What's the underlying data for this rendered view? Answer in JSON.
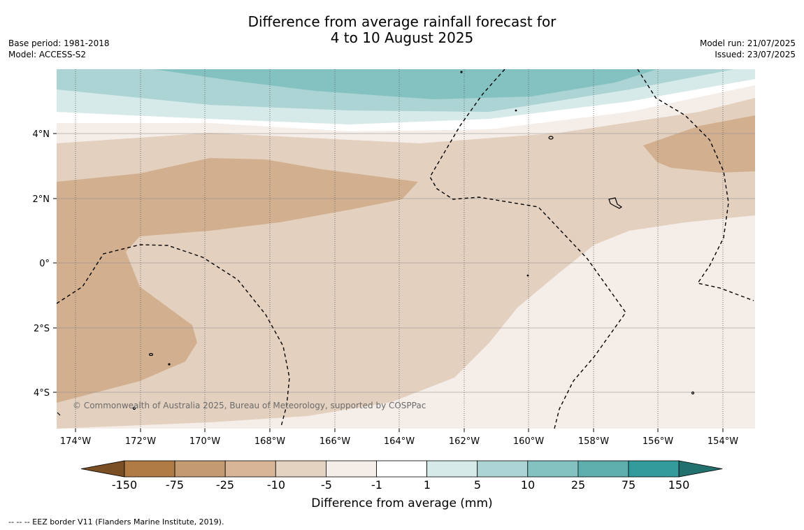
{
  "title_line1": "Difference from average rainfall forecast for",
  "title_line2": "4 to 10 August 2025",
  "meta_left": {
    "base_period": "Base period: 1981-2018",
    "model": "Model: ACCESS-S2"
  },
  "meta_right": {
    "model_run": "Model run: 21/07/2025",
    "issued": "Issued: 23/07/2025"
  },
  "map": {
    "lon_labels": [
      "174°W",
      "172°W",
      "170°W",
      "168°W",
      "166°W",
      "164°W",
      "162°W",
      "160°W",
      "158°W",
      "156°W",
      "154°W"
    ],
    "lat_labels": [
      "4°N",
      "2°N",
      "0°",
      "2°S",
      "4°S"
    ],
    "copyright": "© Commonwealth of Australia 2025, Bureau of Meteorology, supported by COSPPac",
    "colors": {
      "land_dry_strong": "#d2b08f",
      "land_dry_mid": "#e3d0bf",
      "near_normal_dry": "#f5ede8",
      "neutral": "#ffffff",
      "wet_light": "#d7eaea",
      "wet_mid": "#acd4d4",
      "wet_strong": "#84c2c2",
      "eez_border": "#000000"
    }
  },
  "colorbar": {
    "labels": [
      "-150",
      "-75",
      "-25",
      "-10",
      "-5",
      "-1",
      "1",
      "5",
      "10",
      "25",
      "75",
      "150"
    ],
    "colors": [
      "#7a4f24",
      "#b07a45",
      "#c49a71",
      "#d7b596",
      "#e5d3c2",
      "#f5ede8",
      "#ffffff",
      "#d7eaea",
      "#acd4d4",
      "#84c2c2",
      "#5eaeae",
      "#339b9b",
      "#23716f"
    ],
    "title": "Difference from average (mm)"
  },
  "footnote": "--  --  -- EEZ border V11 (Flanders Marine Institute, 2019)."
}
